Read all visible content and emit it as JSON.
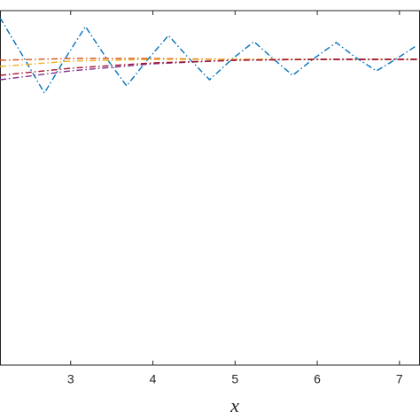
{
  "chart_data": {
    "type": "line",
    "x_label": "x",
    "xlim": [
      2.14,
      7.25
    ],
    "xticks": [
      3,
      4,
      5,
      6,
      7
    ],
    "ylim": [
      0,
      1
    ],
    "series": [
      {
        "color": "#0072BD",
        "x": [
          2.14,
          2.41,
          2.68,
          2.92,
          3.18,
          3.43,
          3.68,
          3.93,
          4.19,
          4.43,
          4.69,
          4.96,
          5.23,
          5.46,
          5.7,
          5.96,
          6.23,
          6.47,
          6.72,
          6.97,
          7.2
        ],
        "values": [
          0.98,
          0.875,
          0.7675,
          0.86,
          0.955,
          0.8675,
          0.7875,
          0.86,
          0.93,
          0.8675,
          0.805,
          0.8625,
          0.9125,
          0.865,
          0.8175,
          0.865,
          0.91,
          0.8675,
          0.83,
          0.865,
          0.9
        ]
      },
      {
        "color": "#D95319",
        "x": [
          2.14,
          3,
          4,
          5,
          6,
          7.25
        ],
        "values": [
          0.86,
          0.865,
          0.865,
          0.8625,
          0.8625,
          0.8625
        ]
      },
      {
        "color": "#EDB120",
        "x": [
          2.14,
          3,
          4,
          5,
          6,
          7.25
        ],
        "values": [
          0.8425,
          0.8575,
          0.8625,
          0.8625,
          0.8625,
          0.8625
        ]
      },
      {
        "color": "#7E2F8E",
        "x": [
          2.14,
          3,
          4,
          5,
          6,
          7.25
        ],
        "values": [
          0.805,
          0.83,
          0.85,
          0.86,
          0.8625,
          0.8625
        ]
      },
      {
        "color": "#A2142F",
        "x": [
          2.14,
          3,
          4,
          5,
          6,
          7.25
        ],
        "values": [
          0.8175,
          0.8375,
          0.8525,
          0.86,
          0.8625,
          0.8625
        ]
      }
    ]
  }
}
